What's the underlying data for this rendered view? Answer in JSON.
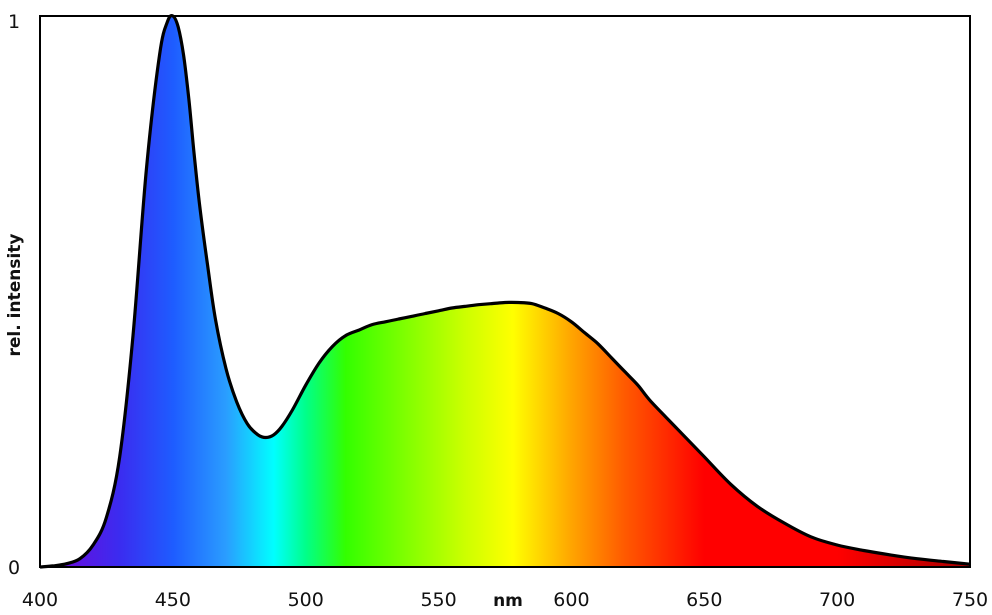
{
  "chart_data": {
    "type": "area",
    "title": "",
    "xlabel": "nm",
    "ylabel": "rel. intensity",
    "xlim": [
      400,
      750
    ],
    "ylim": [
      0,
      1
    ],
    "x_ticks": [
      "400",
      "450",
      "500",
      "550",
      "600",
      "650",
      "700",
      "750"
    ],
    "y_ticks": [
      "0",
      "1"
    ],
    "grid": false,
    "legend": "none",
    "fill": "visible spectrum color gradient",
    "series": [
      {
        "x": [
          400,
          405,
          410,
          415,
          420,
          425,
          430,
          435,
          440,
          445,
          448,
          450,
          452,
          454,
          456,
          458,
          460,
          463,
          466,
          470,
          474,
          478,
          482,
          485,
          488,
          491,
          495,
          500,
          505,
          510,
          515,
          520,
          525,
          530,
          535,
          540,
          545,
          550,
          555,
          560,
          565,
          570,
          575,
          580,
          585,
          590,
          595,
          600,
          605,
          610,
          615,
          620,
          625,
          630,
          640,
          650,
          660,
          670,
          680,
          690,
          700,
          710,
          720,
          730,
          740,
          750
        ],
        "y": [
          0.0,
          0.002,
          0.006,
          0.015,
          0.04,
          0.09,
          0.2,
          0.42,
          0.72,
          0.93,
          0.99,
          1.0,
          0.98,
          0.93,
          0.85,
          0.75,
          0.66,
          0.55,
          0.45,
          0.36,
          0.3,
          0.26,
          0.24,
          0.235,
          0.24,
          0.255,
          0.285,
          0.33,
          0.37,
          0.4,
          0.42,
          0.43,
          0.44,
          0.445,
          0.45,
          0.455,
          0.46,
          0.465,
          0.47,
          0.473,
          0.476,
          0.478,
          0.48,
          0.48,
          0.478,
          0.47,
          0.46,
          0.445,
          0.425,
          0.405,
          0.38,
          0.355,
          0.33,
          0.3,
          0.25,
          0.2,
          0.15,
          0.11,
          0.08,
          0.055,
          0.04,
          0.03,
          0.022,
          0.015,
          0.01,
          0.005
        ]
      }
    ]
  },
  "colors": {
    "axis": "#000000",
    "curve": "#000000",
    "spectrum_stops": [
      {
        "nm": 400,
        "color": "#7a00d6"
      },
      {
        "nm": 430,
        "color": "#3b2cf0"
      },
      {
        "nm": 450,
        "color": "#1e5cff"
      },
      {
        "nm": 470,
        "color": "#2a9dff"
      },
      {
        "nm": 488,
        "color": "#00ffff"
      },
      {
        "nm": 500,
        "color": "#00ff8a"
      },
      {
        "nm": 515,
        "color": "#33ff00"
      },
      {
        "nm": 540,
        "color": "#88ff00"
      },
      {
        "nm": 560,
        "color": "#ccff00"
      },
      {
        "nm": 578,
        "color": "#ffff00"
      },
      {
        "nm": 600,
        "color": "#ffa500"
      },
      {
        "nm": 620,
        "color": "#ff5a00"
      },
      {
        "nm": 650,
        "color": "#ff0000"
      },
      {
        "nm": 700,
        "color": "#ff0000"
      },
      {
        "nm": 750,
        "color": "#aa0000"
      }
    ]
  }
}
